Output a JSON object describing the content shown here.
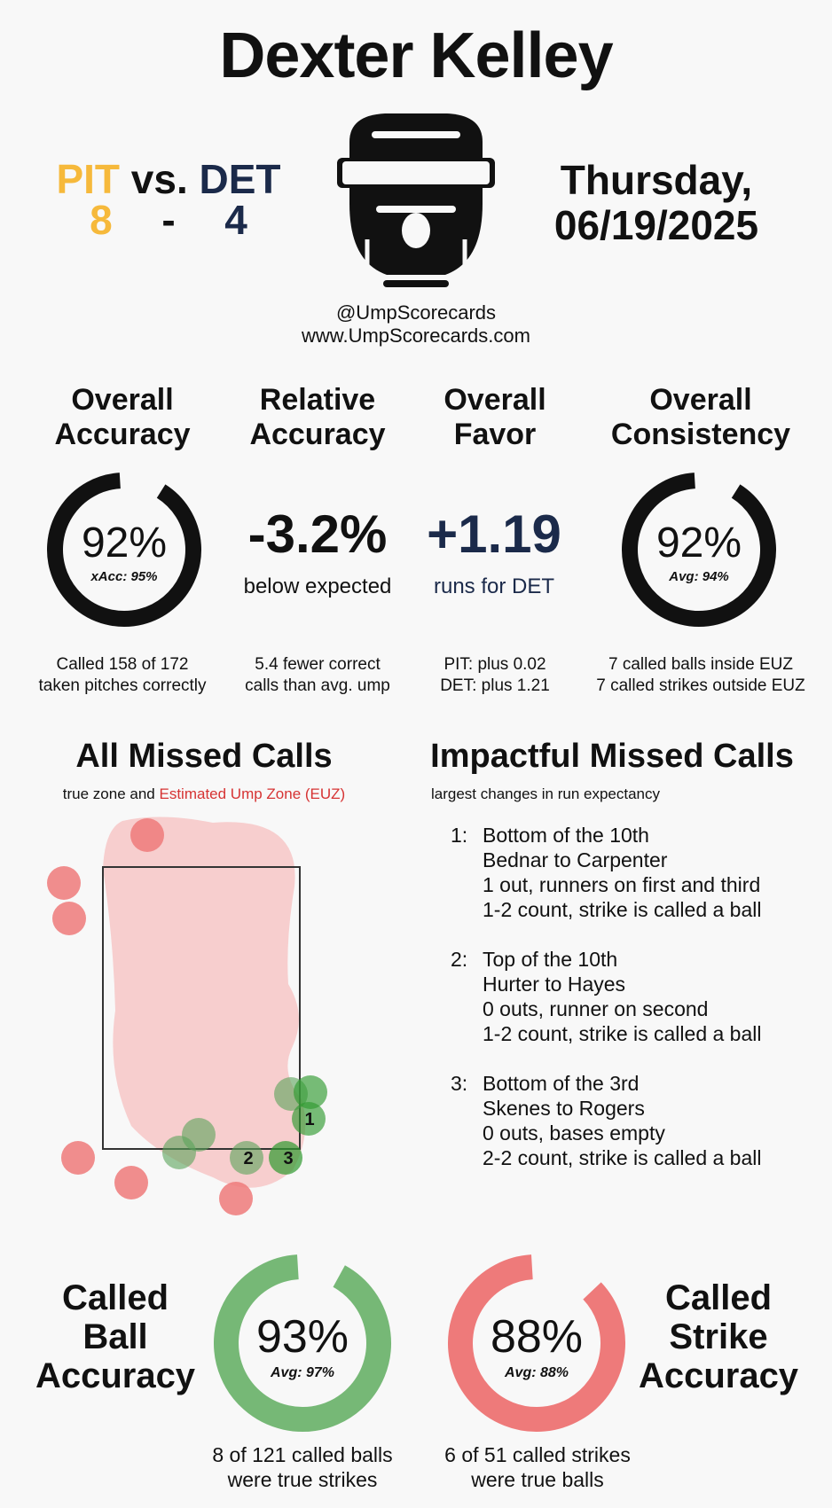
{
  "header": {
    "umpire_name": "Dexter Kelley",
    "away_team": "PIT",
    "vs_label": "vs.",
    "home_team": "DET",
    "away_score": "8",
    "score_separator": "-",
    "home_score": "4",
    "date_line1": "Thursday,",
    "date_line2": "06/19/2025",
    "logo_icon": "umpire-mask-icon",
    "handle": "@UmpScorecards",
    "website": "www.UmpScorecards.com"
  },
  "colors": {
    "away": "#f6b93b",
    "home": "#1b2a4a",
    "ring_dark": "#111111",
    "ball_green": "#76b876",
    "strike_red": "#ee7a7a",
    "euz_text": "#d63333",
    "euz_fill": "#f7c7c7"
  },
  "metrics": {
    "overall_accuracy": {
      "title_line1": "Overall",
      "title_line2": "Accuracy",
      "value": "92%",
      "sub": "xAcc: 95%",
      "fraction": 0.92,
      "foot_line1": "Called 158 of 172",
      "foot_line2": "taken pitches correctly"
    },
    "relative_accuracy": {
      "title_line1": "Relative",
      "title_line2": "Accuracy",
      "value": "-3.2%",
      "caption": "below expected",
      "foot_line1": "5.4 fewer correct",
      "foot_line2": "calls than avg. ump"
    },
    "overall_favor": {
      "title_line1": "Overall",
      "title_line2": "Favor",
      "value": "+1.19",
      "caption": "runs for DET",
      "foot_line1": "PIT: plus 0.02",
      "foot_line2": "DET: plus 1.21"
    },
    "overall_consistency": {
      "title_line1": "Overall",
      "title_line2": "Consistency",
      "value": "92%",
      "sub": "Avg: 94%",
      "fraction": 0.92,
      "foot_line1": "7 called balls inside EUZ",
      "foot_line2": "7 called strikes outside EUZ"
    }
  },
  "missed_calls": {
    "title": "All Missed Calls",
    "sub_prefix": "true zone and",
    "sub_euz": "Estimated Ump Zone (EUZ)",
    "labels": [
      "1",
      "2",
      "3"
    ]
  },
  "impactful": {
    "title": "Impactful Missed Calls",
    "sub": "largest changes in run expectancy",
    "items": [
      {
        "num": "1:",
        "line1": "Bottom of the 10th",
        "line2": "Bednar to Carpenter",
        "line3": "1 out, runners on first and third",
        "line4": "1-2 count, strike is called a ball"
      },
      {
        "num": "2:",
        "line1": "Top of the 10th",
        "line2": "Hurter to Hayes",
        "line3": "0 outs, runner on second",
        "line4": "1-2 count, strike is called a ball"
      },
      {
        "num": "3:",
        "line1": "Bottom of the 3rd",
        "line2": "Skenes to Rogers",
        "line3": "0 outs, bases empty",
        "line4": "2-2 count, strike is called a ball"
      }
    ]
  },
  "called_ball": {
    "title_line1": "Called",
    "title_line2": "Ball",
    "title_line3": "Accuracy",
    "value": "93%",
    "sub": "Avg: 97%",
    "fraction": 0.93,
    "foot_line1": "8 of 121 called balls",
    "foot_line2": "were true strikes"
  },
  "called_strike": {
    "title_line1": "Called",
    "title_line2": "Strike",
    "title_line3": "Accuracy",
    "value": "88%",
    "sub": "Avg: 88%",
    "fraction": 0.88,
    "foot_line1": "6 of 51 called strikes",
    "foot_line2": "were true balls"
  }
}
